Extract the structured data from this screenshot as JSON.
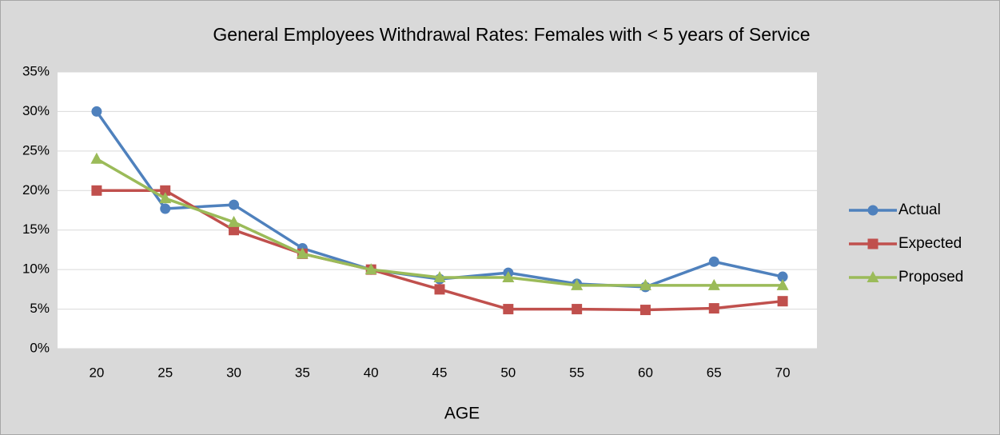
{
  "chart_data": {
    "type": "line",
    "title": "General Employees Withdrawal Rates:  Females with < 5 years of Service",
    "x_label": "AGE",
    "categories": [
      20,
      25,
      30,
      35,
      40,
      45,
      50,
      55,
      60,
      65,
      70
    ],
    "series": [
      {
        "name": "Actual",
        "color": "#4f81bd",
        "marker": "circle",
        "values": [
          30,
          17.7,
          18.2,
          12.7,
          10,
          8.8,
          9.6,
          8.2,
          7.8,
          11,
          9.1
        ]
      },
      {
        "name": "Expected",
        "color": "#c0504d",
        "marker": "square",
        "values": [
          20,
          20,
          15,
          12,
          10,
          7.5,
          5,
          5,
          4.9,
          5.1,
          6
        ]
      },
      {
        "name": "Proposed",
        "color": "#9bbb59",
        "marker": "triangle",
        "values": [
          24,
          19,
          16,
          12,
          10,
          9,
          9,
          8,
          8,
          8,
          8
        ]
      }
    ],
    "ylim": [
      0,
      35
    ],
    "yticks": [
      {
        "value": 0,
        "label": "0%"
      },
      {
        "value": 5,
        "label": "5%"
      },
      {
        "value": 10,
        "label": "10%"
      },
      {
        "value": 15,
        "label": "15%"
      },
      {
        "value": 20,
        "label": "20%"
      },
      {
        "value": 25,
        "label": "25%"
      },
      {
        "value": 30,
        "label": "30%"
      },
      {
        "value": 35,
        "label": "35%"
      }
    ],
    "grid": true,
    "legend": "right"
  }
}
